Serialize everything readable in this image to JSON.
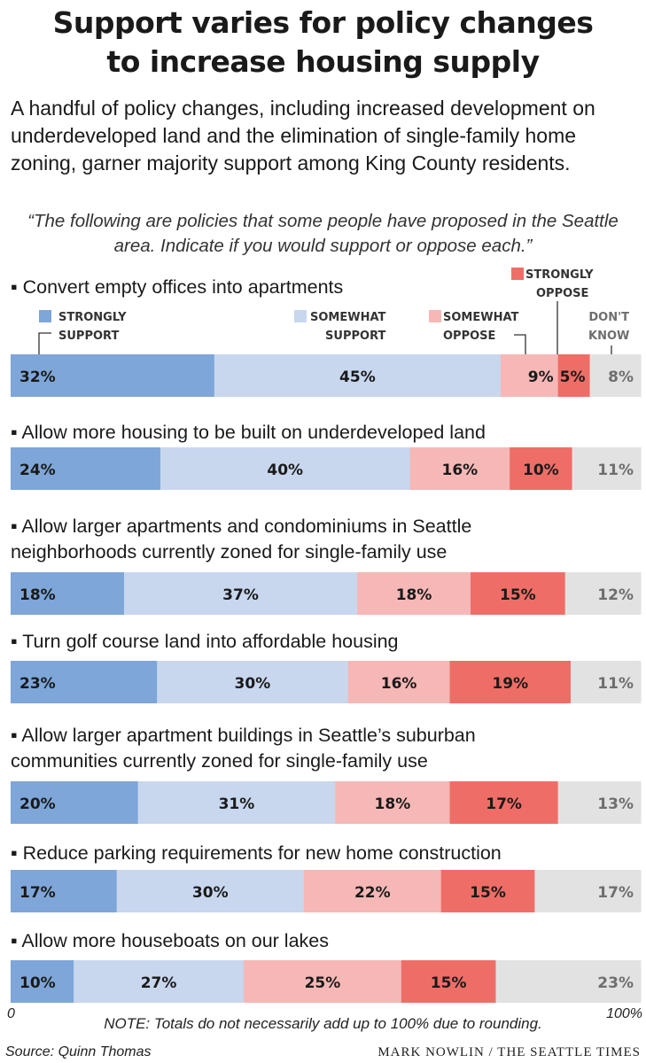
{
  "title_line1": "Support varies for policy changes",
  "title_line2": "to increase housing supply",
  "subtitle": "A handful of policy changes, including increased development on underdeveloped land and the elimination of single-family home zoning, garner majority support among King County residents.",
  "quote": "“The following are policies that some people have proposed in the Seattle area. Indicate if you would support or oppose each.”",
  "legend": {
    "strongly_support": [
      "STRONGLY",
      "SUPPORT"
    ],
    "somewhat_support": [
      "SOMEWHAT",
      "SUPPORT"
    ],
    "somewhat_oppose": [
      "SOMEWHAT",
      "OPPOSE"
    ],
    "strongly_oppose": [
      "STRONGLY",
      "OPPOSE"
    ],
    "dont_know": [
      "DON'T",
      "KNOW"
    ]
  },
  "colors": {
    "strongly_support": "#7ea6d8",
    "somewhat_support": "#c8d7ee",
    "somewhat_oppose": "#f5b8b6",
    "strongly_oppose": "#ee6e67",
    "dont_know": "#e2e2e2",
    "dont_know_text": "#6e6e6e"
  },
  "chart_data": {
    "type": "bar",
    "orientation": "horizontal-stacked",
    "xlim": [
      0,
      100
    ],
    "x_tick_labels": [
      "0",
      "100%"
    ],
    "categories": [
      [
        "Convert empty offices into apartments"
      ],
      [
        "Allow more housing to be built on underdeveloped land"
      ],
      [
        "Allow larger apartments and condominiums in Seattle",
        "neighborhoods currently zoned for single-family use"
      ],
      [
        "Turn golf course land into affordable housing"
      ],
      [
        "Allow larger apartment buildings in Seattle’s suburban",
        "communities currently zoned for single-family use"
      ],
      [
        "Reduce parking requirements for new home construction"
      ],
      [
        "Allow more houseboats on our lakes"
      ]
    ],
    "series": [
      {
        "name": "Strongly support",
        "values": [
          32,
          24,
          18,
          23,
          20,
          17,
          10
        ]
      },
      {
        "name": "Somewhat support",
        "values": [
          45,
          40,
          37,
          30,
          31,
          30,
          27
        ]
      },
      {
        "name": "Somewhat oppose",
        "values": [
          9,
          16,
          18,
          16,
          18,
          22,
          25
        ]
      },
      {
        "name": "Strongly oppose",
        "values": [
          5,
          10,
          15,
          19,
          17,
          15,
          15
        ]
      },
      {
        "name": "Don't know",
        "values": [
          8,
          11,
          12,
          11,
          13,
          17,
          23
        ]
      }
    ]
  },
  "note": "NOTE: Totals do not necessarily add up to 100% due to rounding.",
  "axis_start": "0",
  "axis_end": "100%",
  "source": "Source: Quinn Thomas",
  "credit": "MARK NOWLIN / THE SEATTLE TIMES"
}
